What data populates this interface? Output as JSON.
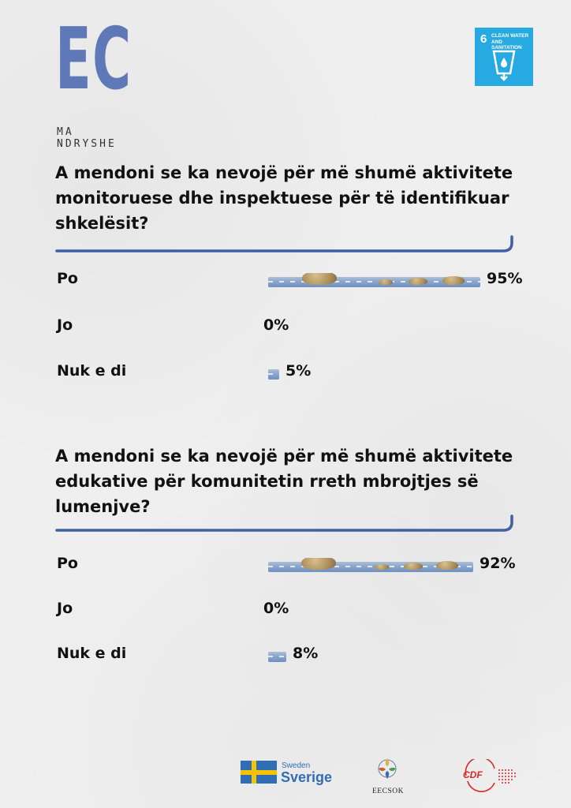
{
  "logo": {
    "letters": "EC",
    "tagline": "MA NDRYSHE"
  },
  "sdg": {
    "number": "6",
    "title_line1": "CLEAN WATER",
    "title_line2": "AND SANITATION",
    "color": "#27a9e1"
  },
  "survey": {
    "q1": {
      "text": "A mendoni se ka nevojë për më shumë aktivitete monitoruese dhe inspektuese për të identifikuar shkelësit?",
      "answers": [
        {
          "label": "Po",
          "value": 95,
          "value_text": "95%"
        },
        {
          "label": "Jo",
          "value": 0,
          "value_text": "0%"
        },
        {
          "label": "Nuk e di",
          "value": 5,
          "value_text": "5%"
        }
      ]
    },
    "q2": {
      "text": "A mendoni se ka nevojë për më shumë aktivitete edukative për komunitetin rreth mbrojtjes së lumenjve?",
      "answers": [
        {
          "label": "Po",
          "value": 92,
          "value_text": "92%"
        },
        {
          "label": "Jo",
          "value": 0,
          "value_text": "0%"
        },
        {
          "label": "Nuk e di",
          "value": 8,
          "value_text": "8%"
        }
      ]
    }
  },
  "chart_data": [
    {
      "type": "bar",
      "title": "A mendoni se ka nevojë për më shumë aktivitete monitoruese dhe inspektuese për të identifikuar shkelësit?",
      "categories": [
        "Po",
        "Jo",
        "Nuk e di"
      ],
      "values": [
        95,
        0,
        5
      ],
      "unit": "%",
      "xlim": [
        0,
        100
      ],
      "orientation": "horizontal",
      "grid": false
    },
    {
      "type": "bar",
      "title": "A mendoni se ka nevojë për më shumë aktivitete edukative për komunitetin rreth mbrojtjes së lumenjve?",
      "categories": [
        "Po",
        "Jo",
        "Nuk e di"
      ],
      "values": [
        92,
        0,
        8
      ],
      "unit": "%",
      "xlim": [
        0,
        100
      ],
      "orientation": "horizontal",
      "grid": false
    }
  ],
  "footer": {
    "sweden_small": "Sweden",
    "sweden_big": "Sverige",
    "eecsok": "EECSOK",
    "cdf": "CDF",
    "sweden_blue": "#2f6db4",
    "sweden_yellow": "#f5c400",
    "cdf_red": "#d42a2a"
  },
  "colors": {
    "accent": "#3f5fa6",
    "logo": "#5f79b8",
    "text": "#111111"
  }
}
